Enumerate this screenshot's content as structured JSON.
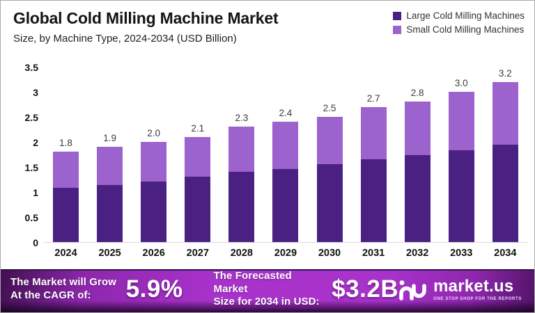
{
  "header": {
    "title": "Global Cold Milling Machine Market",
    "subtitle": "Size, by Machine Type, 2024-2034 (USD Billion)"
  },
  "legend": [
    {
      "label": "Large Cold Milling Machines",
      "color": "#4a2082"
    },
    {
      "label": "Small Cold Milling Machines",
      "color": "#9c62ce"
    }
  ],
  "chart_data": {
    "type": "bar",
    "stacked": true,
    "categories": [
      "2024",
      "2025",
      "2026",
      "2027",
      "2028",
      "2029",
      "2030",
      "2031",
      "2032",
      "2033",
      "2034"
    ],
    "series": [
      {
        "name": "Large Cold Milling Machines",
        "color": "#4a2082",
        "values": [
          1.08,
          1.14,
          1.21,
          1.3,
          1.4,
          1.46,
          1.55,
          1.65,
          1.73,
          1.84,
          1.94
        ]
      },
      {
        "name": "Small Cold Milling Machines",
        "color": "#9c62ce",
        "values": [
          0.72,
          0.76,
          0.79,
          0.8,
          0.9,
          0.94,
          0.95,
          1.05,
          1.07,
          1.16,
          1.26
        ]
      }
    ],
    "totals": [
      1.8,
      1.9,
      2.0,
      2.1,
      2.3,
      2.4,
      2.5,
      2.7,
      2.8,
      3.0,
      3.2
    ],
    "total_labels": [
      "1.8",
      "1.9",
      "2.0",
      "2.1",
      "2.3",
      "2.4",
      "2.5",
      "2.7",
      "2.8",
      "3.0",
      "3.2"
    ],
    "ytick_labels": [
      "3.5",
      "3",
      "2.5",
      "2",
      "1.5",
      "1",
      "0.5",
      "0"
    ],
    "ytick_values": [
      3.5,
      3,
      2.5,
      2,
      1.5,
      1,
      0.5,
      0
    ],
    "ylim": [
      0,
      3.5
    ],
    "grid": false,
    "legend_position": "top-right",
    "title": "Global Cold Milling Machine Market",
    "subtitle": "Size, by Machine Type, 2024-2034 (USD Billion)"
  },
  "banner": {
    "cagr_label_line1": "The Market will Grow",
    "cagr_label_line2": "At the CAGR of:",
    "cagr_value": "5.9%",
    "forecast_label_line1": "The Forecasted Market",
    "forecast_label_line2": "Size for 2034 in USD:",
    "forecast_value": "$3.2B",
    "logo_text": "market.us",
    "logo_tagline": "ONE STOP SHOP FOR THE REPORTS"
  },
  "colors": {
    "bar_dark": "#4a2082",
    "bar_light": "#9c62ce",
    "banner_bright": "#a832ca",
    "banner_dark": "#40104f",
    "baseline": "#d8d8d8",
    "text_dark": "#141414",
    "value_label": "#3a3a3a"
  }
}
